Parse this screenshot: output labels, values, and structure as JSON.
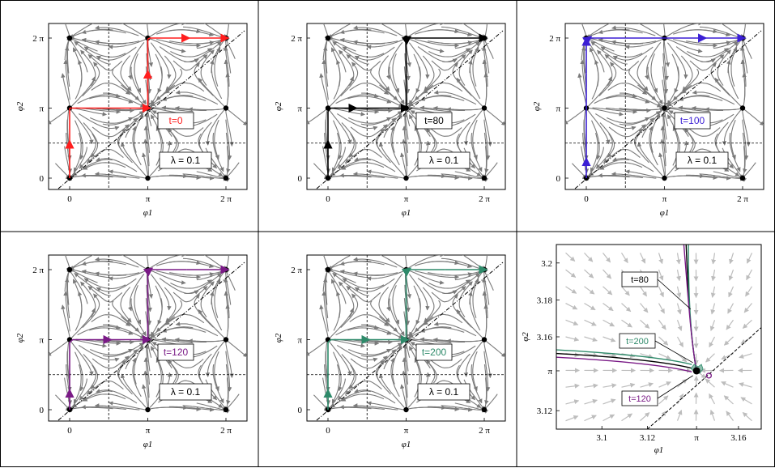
{
  "colors": {
    "t0": "#ff1e1e",
    "t80": "#000000",
    "t100": "#3b1fd4",
    "t120": "#7a1a86",
    "t200": "#2e8a6a",
    "stream": "#7a7a7a",
    "stream_light": "#bdbdbd"
  },
  "axis_labels": {
    "x": "φ1",
    "y": "φ2"
  },
  "ticks": {
    "x": [
      "0",
      "π",
      "2 π"
    ],
    "y": [
      "0",
      "π",
      "2 π"
    ]
  },
  "lambda_label": "λ = 0.1",
  "panels": [
    {
      "time_label": "t=0",
      "color_key": "t0",
      "path": "A"
    },
    {
      "time_label": "t=80",
      "color_key": "t80",
      "path": "B"
    },
    {
      "time_label": "t=100",
      "color_key": "t100",
      "path": "C"
    },
    {
      "time_label": "t=120",
      "color_key": "t120",
      "path": "D"
    },
    {
      "time_label": "t=200",
      "color_key": "t200",
      "path": "D"
    }
  ],
  "zoom": {
    "xticks": [
      "3.1",
      "3.12",
      "π",
      "3.16"
    ],
    "yticks": [
      "3.12",
      "π",
      "3.16",
      "3.18",
      "3.2"
    ],
    "labels": [
      "t=80",
      "t=200",
      "t=120"
    ]
  }
}
